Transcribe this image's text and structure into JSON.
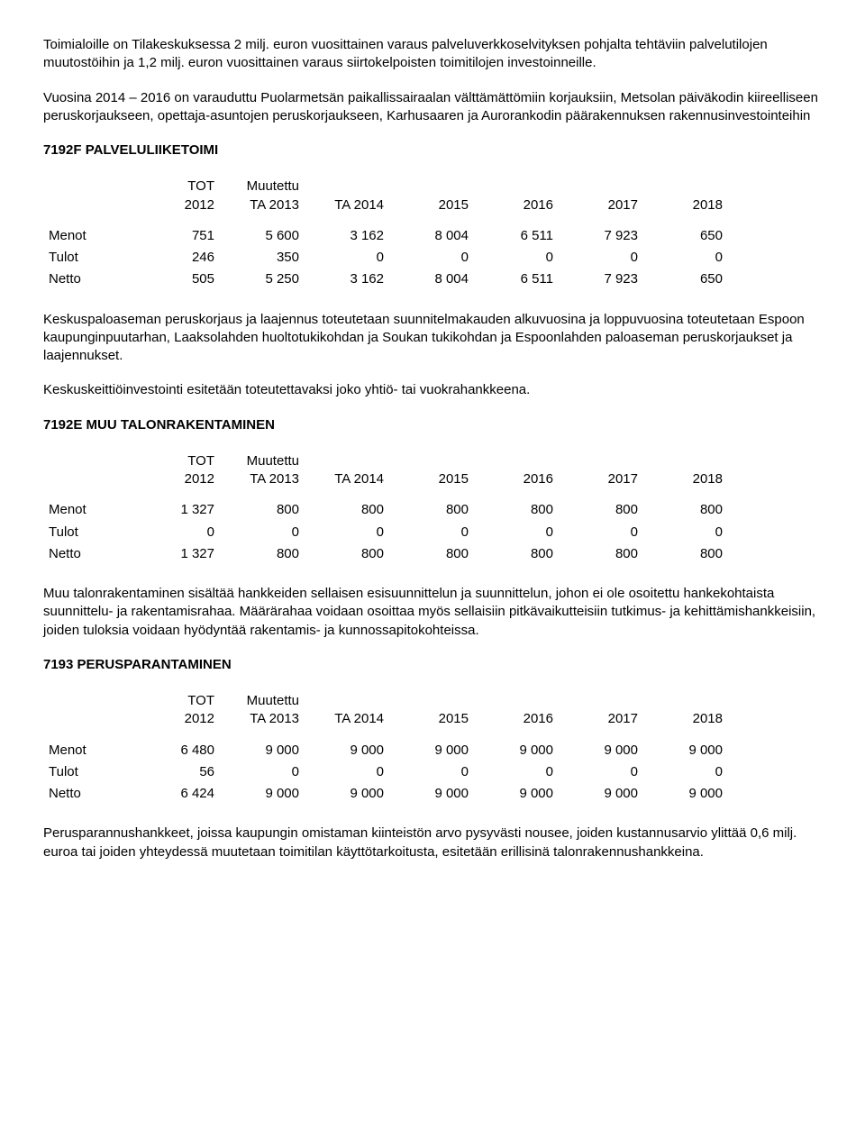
{
  "intro_paragraphs": [
    "Toimialoille on Tilakeskuksessa 2 milj. euron vuosittainen varaus palveluverkkoselvityksen pohjalta tehtäviin palvelutilojen muutostöihin ja 1,2 milj. euron vuosittainen varaus siirtokelpoisten toimitilojen investoinneille.",
    "Vuosina 2014 – 2016 on varauduttu Puolarmetsän paikallissairaalan välttämättömiin korjauksiin, Metsolan päiväkodin kiireelliseen peruskorjaukseen, opettaja-asuntojen peruskorjaukseen, Karhusaaren ja Aurorankodin päärakennuksen rakennusinvestointeihin"
  ],
  "table_header": {
    "line1": [
      "",
      "TOT",
      "Muutettu",
      "",
      "",
      "",
      "",
      ""
    ],
    "line2": [
      "",
      "2012",
      "TA 2013",
      "TA 2014",
      "2015",
      "2016",
      "2017",
      "2018"
    ]
  },
  "row_labels": [
    "Menot",
    "Tulot",
    "Netto"
  ],
  "sections": [
    {
      "title": "7192F PALVELULIIKETOIMI",
      "rows": [
        [
          "751",
          "5 600",
          "3 162",
          "8 004",
          "6 511",
          "7 923",
          "650"
        ],
        [
          "246",
          "350",
          "0",
          "0",
          "0",
          "0",
          "0"
        ],
        [
          "505",
          "5 250",
          "3 162",
          "8 004",
          "6 511",
          "7 923",
          "650"
        ]
      ],
      "paragraphs": [
        "Keskuspaloaseman peruskorjaus ja laajennus toteutetaan suunnitelmakauden alkuvuosina ja loppuvuosina toteutetaan Espoon kaupunginpuutarhan, Laaksolahden huoltotukikohdan ja Soukan tukikohdan ja Espoonlahden paloaseman peruskorjaukset ja laajennukset.",
        "Keskuskeittiöinvestointi esitetään toteutettavaksi joko yhtiö- tai vuokrahankkeena."
      ]
    },
    {
      "title": "7192E MUU TALONRAKENTAMINEN",
      "rows": [
        [
          "1 327",
          "800",
          "800",
          "800",
          "800",
          "800",
          "800"
        ],
        [
          "0",
          "0",
          "0",
          "0",
          "0",
          "0",
          "0"
        ],
        [
          "1 327",
          "800",
          "800",
          "800",
          "800",
          "800",
          "800"
        ]
      ],
      "paragraphs": [
        "Muu talonrakentaminen sisältää hankkeiden sellaisen esisuunnittelun ja suunnittelun, johon ei ole osoitettu hankekohtaista suunnittelu- ja rakentamisrahaa. Määrärahaa voidaan osoittaa myös sellaisiin pitkävaikutteisiin tutkimus- ja kehittämishankkeisiin, joiden tuloksia voidaan hyödyntää rakentamis- ja kunnossapitokohteissa."
      ]
    },
    {
      "title": "7193 PERUSPARANTAMINEN",
      "rows": [
        [
          "6 480",
          "9 000",
          "9 000",
          "9 000",
          "9 000",
          "9 000",
          "9 000"
        ],
        [
          "56",
          "0",
          "0",
          "0",
          "0",
          "0",
          "0"
        ],
        [
          "6 424",
          "9 000",
          "9 000",
          "9 000",
          "9 000",
          "9 000",
          "9 000"
        ]
      ],
      "paragraphs": [
        "Perusparannushankkeet, joissa kaupungin omistaman kiinteistön arvo pysyvästi nousee, joiden kustannusarvio ylittää 0,6 milj. euroa tai joiden yhteydessä muutetaan toimitilan käyttötarkoitusta, esitetään erillisinä talonrakennushankkeina."
      ]
    }
  ]
}
